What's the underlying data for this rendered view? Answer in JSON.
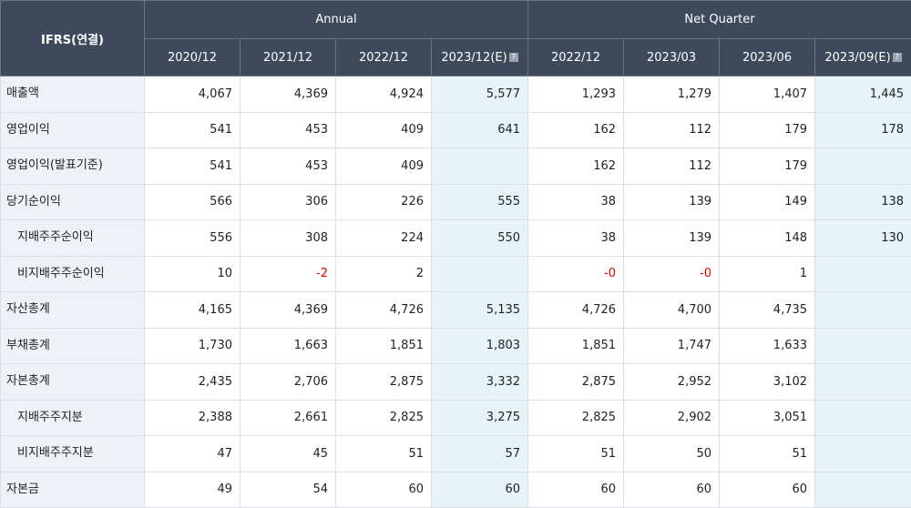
{
  "header": {
    "corner_label": "IFRS(연결)",
    "annual_label": "Annual",
    "quarter_label": "Net Quarter",
    "periods": [
      "2020/12",
      "2021/12",
      "2022/12",
      "2023/12(E)",
      "2022/12",
      "2023/03",
      "2023/06",
      "2023/09(E)"
    ]
  },
  "rows": [
    {
      "label": "매출액",
      "sub": false,
      "values": [
        "4,067",
        "4,369",
        "4,924",
        "5,577",
        "1,293",
        "1,279",
        "1,407",
        "1,445"
      ]
    },
    {
      "label": "영업이익",
      "sub": false,
      "values": [
        "541",
        "453",
        "409",
        "641",
        "162",
        "112",
        "179",
        "178"
      ]
    },
    {
      "label": "영업이익(발표기준)",
      "sub": false,
      "values": [
        "541",
        "453",
        "409",
        "",
        "162",
        "112",
        "179",
        ""
      ]
    },
    {
      "label": "당기순이익",
      "sub": false,
      "values": [
        "566",
        "306",
        "226",
        "555",
        "38",
        "139",
        "149",
        "138"
      ]
    },
    {
      "label": "지배주주순이익",
      "sub": true,
      "values": [
        "556",
        "308",
        "224",
        "550",
        "38",
        "139",
        "148",
        "130"
      ]
    },
    {
      "label": "비지배주주순이익",
      "sub": true,
      "values": [
        "10",
        "-2",
        "2",
        "",
        "-0",
        "-0",
        "1",
        ""
      ]
    },
    {
      "label": "자산총계",
      "sub": false,
      "values": [
        "4,165",
        "4,369",
        "4,726",
        "5,135",
        "4,726",
        "4,700",
        "4,735",
        ""
      ]
    },
    {
      "label": "부채총계",
      "sub": false,
      "values": [
        "1,730",
        "1,663",
        "1,851",
        "1,803",
        "1,851",
        "1,747",
        "1,633",
        ""
      ]
    },
    {
      "label": "자본총계",
      "sub": false,
      "values": [
        "2,435",
        "2,706",
        "2,875",
        "3,332",
        "2,875",
        "2,952",
        "3,102",
        ""
      ]
    },
    {
      "label": "지배주주지분",
      "sub": true,
      "values": [
        "2,388",
        "2,661",
        "2,825",
        "3,275",
        "2,825",
        "2,902",
        "3,051",
        ""
      ]
    },
    {
      "label": "비지배주주지분",
      "sub": true,
      "values": [
        "47",
        "45",
        "51",
        "57",
        "51",
        "50",
        "51",
        ""
      ]
    },
    {
      "label": "자본금",
      "sub": false,
      "values": [
        "49",
        "54",
        "60",
        "60",
        "60",
        "60",
        "60",
        ""
      ]
    }
  ],
  "estimate_columns": [
    3,
    7
  ],
  "colors": {
    "header_bg": "#3e4a5c",
    "estimate_bg": "#e6f4fa",
    "label_bg": "#eef1f5",
    "negative": "#e00000"
  },
  "icons": {
    "estimate_help": "help-icon"
  }
}
